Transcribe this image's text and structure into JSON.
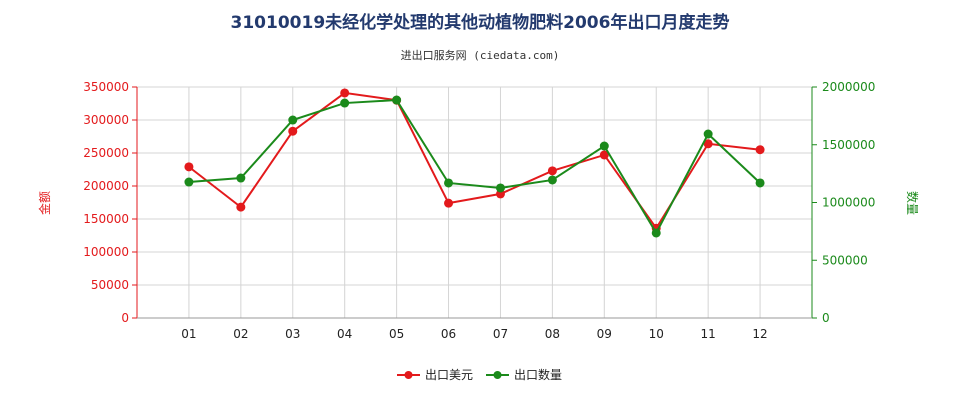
{
  "chart_data": {
    "type": "line",
    "title": "31010019未经化学处理的其他动植物肥料2006年出口月度走势",
    "subtitle": "进出口服务网 (ciedata.com)",
    "categories": [
      "01",
      "02",
      "03",
      "04",
      "05",
      "06",
      "07",
      "08",
      "09",
      "10",
      "11",
      "12"
    ],
    "series": [
      {
        "name": "出口美元",
        "axis": "left",
        "color": "#e31a1c",
        "values": [
          229000,
          168000,
          283000,
          341000,
          330000,
          174000,
          188000,
          223000,
          247000,
          136000,
          264000,
          255000
        ]
      },
      {
        "name": "出口数量",
        "axis": "right",
        "color": "#1b8a1b",
        "values": [
          1177000,
          1212000,
          1714000,
          1861000,
          1887000,
          1169000,
          1126000,
          1195000,
          1489000,
          736000,
          1593000,
          1169000
        ]
      }
    ],
    "ylabel": "金额",
    "y2label": "数量",
    "ylim": [
      0,
      350000
    ],
    "y2lim": [
      0,
      2000000
    ],
    "yticks": [
      0,
      50000,
      100000,
      150000,
      200000,
      250000,
      300000,
      350000
    ],
    "y2ticks": [
      0,
      500000,
      1000000,
      1500000,
      2000000
    ],
    "grid": true,
    "legend": "bottom-center"
  }
}
